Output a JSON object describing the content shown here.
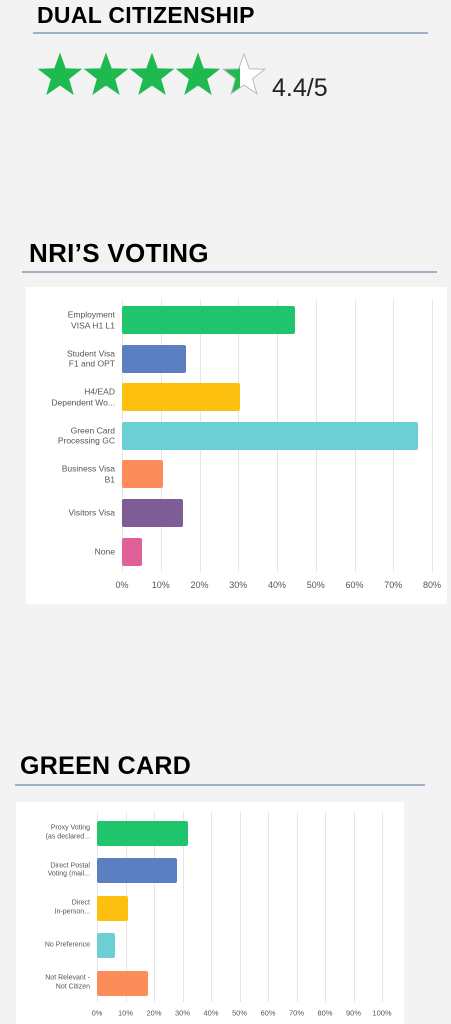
{
  "headings": [
    "DUAL CITIZENSHIP",
    "NRI’S VOTING",
    "GREEN CARD"
  ],
  "rating": {
    "score": 4.4,
    "max": 5,
    "label": "4.4/5",
    "color": "#1fba4f"
  },
  "chart_data": [
    {
      "type": "bar",
      "orientation": "horizontal",
      "categories": [
        "Employment\nVISA H1 L1",
        "Student Visa\nF1 and OPT",
        "H4/EAD\nDependent Wo...",
        "Green Card\nProcessing GC",
        "Business Visa\nB1",
        "Visitors Visa",
        "None"
      ],
      "values": [
        44.6,
        16.5,
        30.5,
        76.4,
        10.6,
        15.7,
        5.2
      ],
      "colors": [
        "#1fc56c",
        "#5b7fc1",
        "#fdc00f",
        "#6ccfd3",
        "#fc8d5b",
        "#7e5c95",
        "#e0609a"
      ],
      "xlim": [
        0,
        80
      ],
      "xticks": [
        {
          "value": 0,
          "label": "0%"
        },
        {
          "value": 10,
          "label": "10%"
        },
        {
          "value": 20,
          "label": "20%"
        },
        {
          "value": 30,
          "label": "30%"
        },
        {
          "value": 40,
          "label": "40%"
        },
        {
          "value": 50,
          "label": "50%"
        },
        {
          "value": 60,
          "label": "60%"
        },
        {
          "value": 70,
          "label": "70%"
        },
        {
          "value": 80,
          "label": "80%"
        }
      ],
      "grid": true
    },
    {
      "type": "bar",
      "orientation": "horizontal",
      "categories": [
        "Proxy Voting\n(as declared...",
        "Direct Postal\nVoting (mail...",
        "Direct\nIn-person...",
        "No Preference",
        "Not Relevant -\nNot Citizen"
      ],
      "values": [
        31.9,
        28,
        10.9,
        6.3,
        17.9
      ],
      "colors": [
        "#1fc56c",
        "#5b7fc1",
        "#fdc00f",
        "#6ccfd3",
        "#fc8d5b"
      ],
      "xlim": [
        0,
        100
      ],
      "xticks": [
        {
          "value": 0,
          "label": "0%"
        },
        {
          "value": 10,
          "label": "10%"
        },
        {
          "value": 20,
          "label": "20%"
        },
        {
          "value": 30,
          "label": "30%"
        },
        {
          "value": 40,
          "label": "40%"
        },
        {
          "value": 50,
          "label": "50%"
        },
        {
          "value": 60,
          "label": "60%"
        },
        {
          "value": 70,
          "label": "70%"
        },
        {
          "value": 80,
          "label": "80%"
        },
        {
          "value": 90,
          "label": "90%"
        },
        {
          "value": 100,
          "label": "100%"
        }
      ],
      "grid": true
    }
  ]
}
